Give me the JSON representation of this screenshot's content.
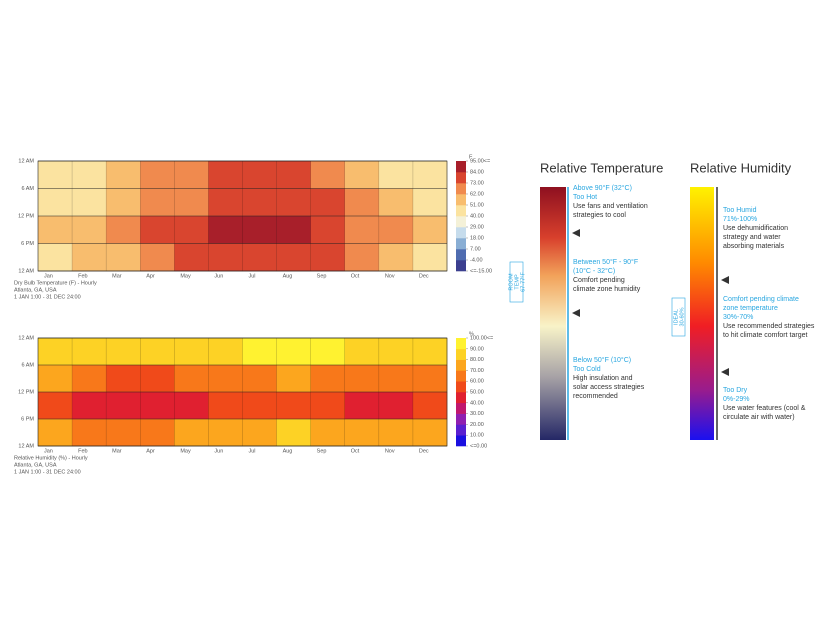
{
  "chart_data": [
    {
      "type": "heatmap",
      "x": [
        "Jan",
        "Feb",
        "Mar",
        "Apr",
        "May",
        "Jun",
        "Jul",
        "Aug",
        "Sep",
        "Oct",
        "Nov",
        "Dec"
      ],
      "yticks": [
        "12 AM",
        "6 AM",
        "12 PM",
        "6 PM",
        "12 AM"
      ],
      "values": [
        [
          42,
          45,
          55,
          62,
          68,
          74,
          76,
          75,
          70,
          60,
          50,
          44
        ],
        [
          46,
          50,
          58,
          66,
          72,
          78,
          80,
          79,
          74,
          64,
          54,
          47
        ],
        [
          54,
          58,
          66,
          74,
          80,
          86,
          88,
          87,
          82,
          72,
          62,
          55
        ],
        [
          47,
          51,
          59,
          67,
          74,
          80,
          82,
          81,
          75,
          64,
          54,
          48
        ]
      ],
      "colorbar_unit": "F",
      "colorbar_ticks": [
        {
          "value": 95,
          "label": "95.00<="
        },
        {
          "value": 84,
          "label": "84.00"
        },
        {
          "value": 73,
          "label": "73.00"
        },
        {
          "value": 62,
          "label": "62.00"
        },
        {
          "value": 51,
          "label": "51.00"
        },
        {
          "value": 40,
          "label": "40.00"
        },
        {
          "value": 29,
          "label": "29.00"
        },
        {
          "value": 18,
          "label": "18.00"
        },
        {
          "value": 7,
          "label": "7.00"
        },
        {
          "value": -4,
          "label": "-4.00"
        },
        {
          "value": -15,
          "label": "<=-15.00"
        }
      ],
      "colorscale": [
        "#3b3f8f",
        "#4f6cb0",
        "#89aed4",
        "#c6dcec",
        "#f4f1d8",
        "#fbe3a0",
        "#f8bd6e",
        "#f08a4e",
        "#d9452f",
        "#a81f2a"
      ],
      "caption": [
        "Dry Bulb Temperature (F) - Hourly",
        "Atlanta, GA, USA",
        "1 JAN 1:00 - 31 DEC 24:00"
      ]
    },
    {
      "type": "heatmap",
      "x": [
        "Jan",
        "Feb",
        "Mar",
        "Apr",
        "May",
        "Jun",
        "Jul",
        "Aug",
        "Sep",
        "Oct",
        "Nov",
        "Dec"
      ],
      "yticks": [
        "12 AM",
        "6 AM",
        "12 PM",
        "6 PM",
        "12 AM"
      ],
      "values": [
        [
          85,
          80,
          80,
          82,
          85,
          88,
          90,
          90,
          90,
          85,
          82,
          82
        ],
        [
          70,
          60,
          55,
          55,
          62,
          65,
          68,
          70,
          68,
          60,
          62,
          68
        ],
        [
          50,
          45,
          40,
          40,
          48,
          52,
          55,
          56,
          52,
          45,
          48,
          52
        ],
        [
          75,
          68,
          65,
          66,
          72,
          75,
          78,
          80,
          78,
          70,
          70,
          75
        ]
      ],
      "colorbar_unit": "%",
      "colorbar_ticks": [
        {
          "value": 100,
          "label": "100.00<="
        },
        {
          "value": 90,
          "label": "90.00"
        },
        {
          "value": 80,
          "label": "80.00"
        },
        {
          "value": 70,
          "label": "70.00"
        },
        {
          "value": 60,
          "label": "60.00"
        },
        {
          "value": 50,
          "label": "50.00"
        },
        {
          "value": 40,
          "label": "40.00"
        },
        {
          "value": 30,
          "label": "30.00"
        },
        {
          "value": 20,
          "label": "20.00"
        },
        {
          "value": 10,
          "label": "10.00"
        },
        {
          "value": 0,
          "label": "<=0.00"
        }
      ],
      "colorscale": [
        "#1a0fe0",
        "#5a20d0",
        "#9020b0",
        "#c0186e",
        "#e02030",
        "#f04a1a",
        "#f8781a",
        "#fca61e",
        "#fdd225",
        "#fff230"
      ],
      "caption": [
        "Relative Humidity (%) - Hourly",
        "Atlanta, GA, USA",
        "1 JAN 1:00 - 31 DEC 24:00"
      ]
    }
  ],
  "legends": [
    {
      "title": "Relative Temperature",
      "range_label": [
        "ROOM",
        "TEMP",
        "67-77°F"
      ],
      "sections": [
        {
          "heading": [
            "Above 90°F (32°C)",
            "Too Hot"
          ],
          "text": [
            "Use fans and ventilation",
            "strategies to cool"
          ]
        },
        {
          "heading": [
            "Between 50°F - 90°F",
            "(10°C - 32°C)"
          ],
          "text": [
            "Comfort pending",
            "climate zone humidity"
          ]
        },
        {
          "heading": [
            "Below 50°F (10°C)",
            "Too Cold"
          ],
          "text": [
            "High insulation and",
            "solar access  strategies",
            "recommended"
          ]
        }
      ]
    },
    {
      "title": "Relative Humidity",
      "range_label": [
        "IDEAL",
        "30-60%"
      ],
      "sections": [
        {
          "heading": [
            "Too Humid",
            "71%-100%"
          ],
          "text": [
            "Use dehumidification",
            "strategy and water",
            "absorbing materials"
          ]
        },
        {
          "heading": [
            "Comfort pending climate",
            "zone temperature",
            "30%-70%"
          ],
          "text": [
            "Use recommended strategies",
            "to hit climate comfort target"
          ]
        },
        {
          "heading": [
            "Too Dry",
            "0%-29%"
          ],
          "text": [
            "Use water features (cool &",
            "circulate air with water)"
          ]
        }
      ]
    }
  ]
}
